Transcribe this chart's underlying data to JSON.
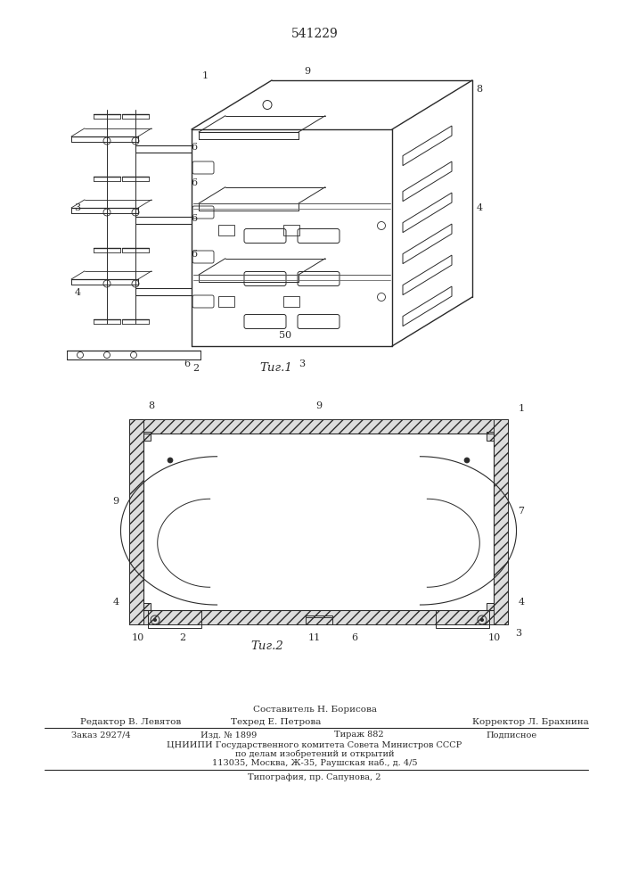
{
  "patent_number": "541229",
  "bg_color": "#ffffff",
  "line_color": "#2a2a2a",
  "fig1_caption": "Τиг.1",
  "fig2_caption": "Τиг.2",
  "footer": {
    "composer_label": "Составитель Н. Борисова",
    "editor_label": "Редактор В. Левятов",
    "techn_label": "Техред Е. Петрова",
    "corrector_label": "Корректор Л. Брахнина",
    "order_label": "Заказ 2927/4",
    "izd_label": "Изд. № 1899",
    "tirazh_label": "Тираж 882",
    "podp_label": "Подписное",
    "cniip_line1": "ЦНИИПИ Государственного комитета Совета Министров СССР",
    "cniip_line2": "по делам изобретений и открытий",
    "cniip_line3": "113035, Москва, Ж-35, Раушская наб., д. 4/5",
    "tipografia": "Типография, пр. Сапунова, 2"
  }
}
